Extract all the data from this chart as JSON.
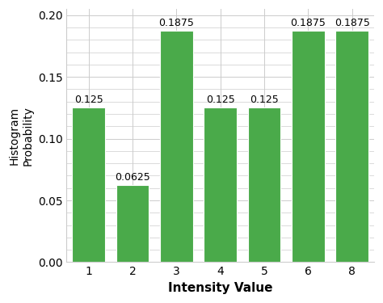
{
  "categories": [
    1,
    2,
    3,
    4,
    5,
    6,
    8
  ],
  "values": [
    0.125,
    0.0625,
    0.1875,
    0.125,
    0.125,
    0.1875,
    0.1875
  ],
  "labels": [
    "0.125",
    "0.0625",
    "0.1875",
    "0.125",
    "0.125",
    "0.1875",
    "0.1875"
  ],
  "bar_color": "#4aaa4a",
  "bar_edge_color": "#ffffff",
  "xlabel": "Intensity Value",
  "ylabel": "Histogram\nProbability",
  "ylim": [
    0,
    0.205
  ],
  "yticks": [
    0,
    0.05,
    0.1,
    0.15,
    0.2
  ],
  "grid_color": "#cccccc",
  "bg_color": "#ffffff",
  "xlabel_fontsize": 11,
  "ylabel_fontsize": 10,
  "tick_fontsize": 10,
  "label_fontsize": 9,
  "bar_width": 0.75
}
